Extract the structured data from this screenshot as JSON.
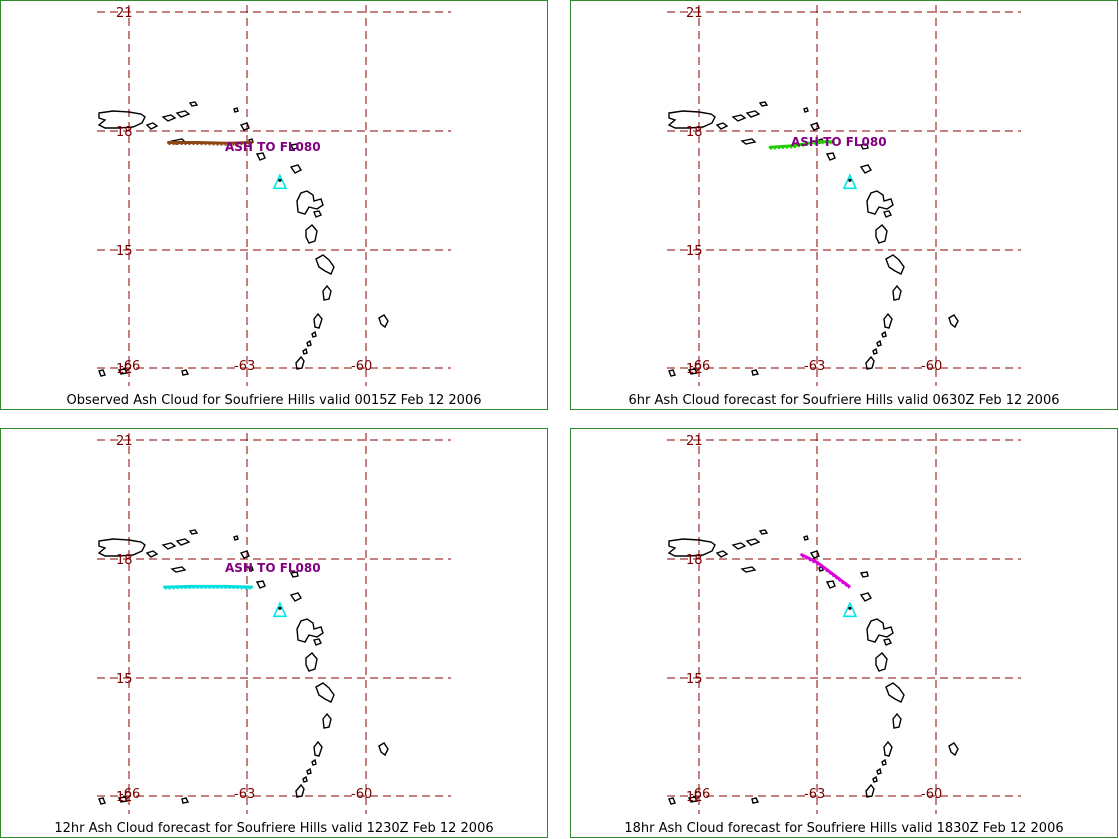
{
  "colors": {
    "grid": "#8b0000",
    "tick_label": "#7a0000",
    "coast": "#000000",
    "volcano": "#00e5e5",
    "annotation": "#800080",
    "panel_border": "#2e8b2e"
  },
  "axes": {
    "lat_ticks": [
      "21",
      "18",
      "15",
      "12"
    ],
    "lon_ticks": [
      "-66",
      "-63",
      "-60"
    ]
  },
  "panels": [
    {
      "id": "observed",
      "caption": "Observed Ash Cloud for Soufriere  Hills valid 0015Z Feb 12 2006",
      "annotation": "ASH TO FL080",
      "ash_color": "#8b4513",
      "ash_path_lonlat": [
        [
          -65.0,
          17.7
        ],
        [
          -64.3,
          17.7
        ],
        [
          -63.5,
          17.68
        ],
        [
          -62.9,
          17.7
        ]
      ]
    },
    {
      "id": "6hr",
      "caption": "6hr Ash Cloud forecast for Soufriere  Hills valid 0630Z Feb 12 2006",
      "annotation": "ASH TO FL080",
      "ash_color": "#22cc00",
      "ash_path_lonlat": [
        [
          -64.2,
          17.58
        ],
        [
          -63.6,
          17.62
        ],
        [
          -63.0,
          17.72
        ],
        [
          -62.6,
          17.72
        ]
      ]
    },
    {
      "id": "12hr",
      "caption": "12hr Ash Cloud forecast for Soufriere  Hills valid 1230Z Feb 12 2006",
      "annotation": "ASH TO FL080",
      "ash_color": "#00dddd",
      "ash_path_lonlat": [
        [
          -65.1,
          17.28
        ],
        [
          -64.4,
          17.3
        ],
        [
          -63.6,
          17.3
        ],
        [
          -62.9,
          17.28
        ]
      ]
    },
    {
      "id": "18hr",
      "caption": "18hr Ash Cloud forecast for Soufriere  Hills valid 1830Z Feb 12 2006",
      "annotation": "",
      "ash_color": "#dd00dd",
      "ash_path_lonlat": [
        [
          -63.4,
          18.1
        ],
        [
          -63.0,
          17.9
        ],
        [
          -62.6,
          17.6
        ],
        [
          -62.2,
          17.3
        ]
      ]
    }
  ]
}
